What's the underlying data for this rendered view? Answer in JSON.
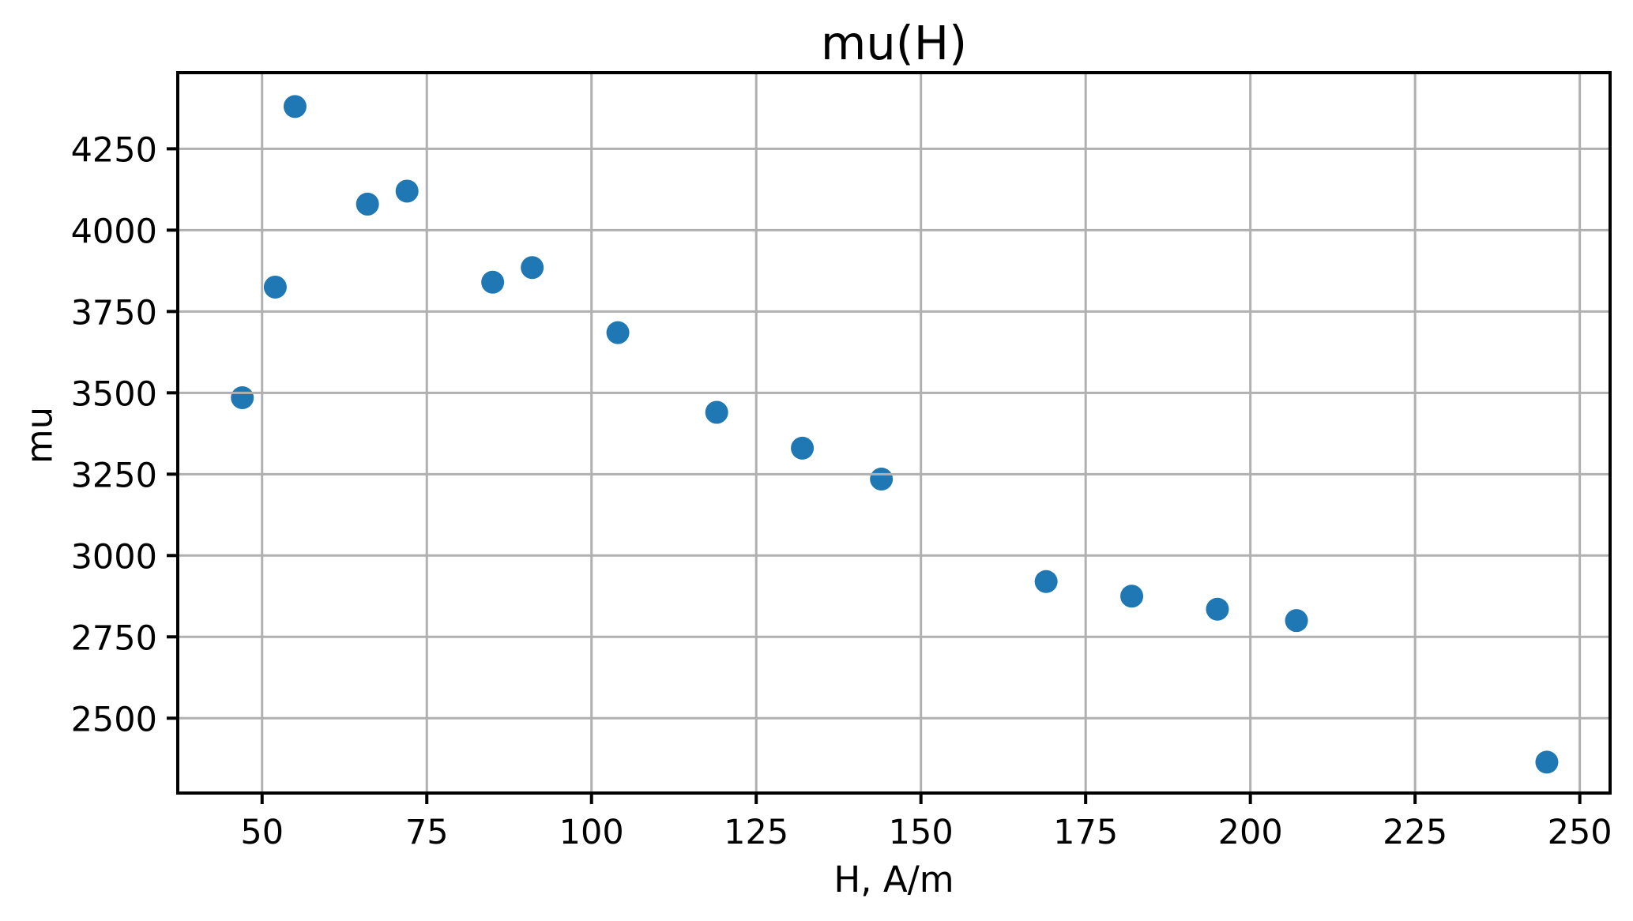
{
  "figure": {
    "background": "#ffffff"
  },
  "chart_data": {
    "type": "scatter",
    "title": "mu(H)",
    "xlabel": "H, A/m",
    "ylabel": "mu",
    "series": [
      {
        "name": "mu",
        "marker_color": "#1f77b4",
        "points": [
          [
            47,
            3485
          ],
          [
            52,
            3825
          ],
          [
            55,
            4380
          ],
          [
            66,
            4080
          ],
          [
            72,
            4120
          ],
          [
            85,
            3840
          ],
          [
            91,
            3885
          ],
          [
            104,
            3685
          ],
          [
            119,
            3440
          ],
          [
            132,
            3330
          ],
          [
            144,
            3235
          ],
          [
            169,
            2920
          ],
          [
            182,
            2875
          ],
          [
            195,
            2835
          ],
          [
            207,
            2800
          ],
          [
            245,
            2365
          ]
        ]
      }
    ],
    "xticks": [
      50,
      75,
      100,
      125,
      150,
      175,
      200,
      225,
      250
    ],
    "yticks": [
      2500,
      2750,
      3000,
      3250,
      3500,
      3750,
      4000,
      4250
    ],
    "xlim": [
      37.2,
      254.6
    ],
    "ylim": [
      2270,
      4484
    ],
    "grid": true,
    "grid_on_top_of_points": true,
    "legend": null,
    "grid_color": "#b0b0b0",
    "axis_color": "#000000",
    "text_color": "#000000",
    "marker_diameter_px": 29
  }
}
